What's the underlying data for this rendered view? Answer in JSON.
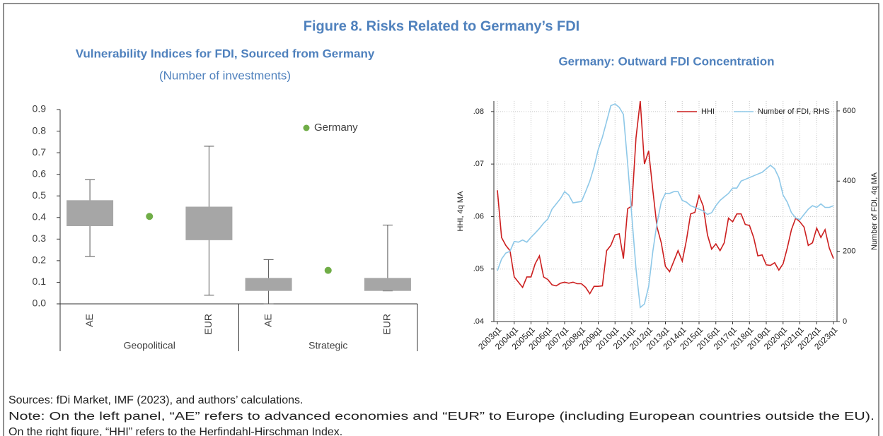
{
  "title": "Figure 8. Risks Related to Germany’s FDI",
  "sources": "Sources: fDi Market, IMF (2023), and authors’ calculations.",
  "note": [
    "Note: On the left panel, “AE” refers to advanced economies and “EUR” to Europe (including European countries outside the EU).",
    "On the right figure, “HHI” refers to the Herfindahl-Hirschman Index."
  ],
  "chart_data": [
    {
      "type": "box",
      "title": "Vulnerability Indices for FDI, Sourced from Germany",
      "subtitle": "(Number of investments)",
      "ylim": [
        0,
        0.9
      ],
      "yticks": [
        {
          "value": 0,
          "label": "0.0"
        },
        0.1,
        0.2,
        0.3,
        0.4,
        0.5,
        0.6,
        0.7,
        0.8,
        0.9
      ],
      "box_color": "#a6a6a6",
      "groups": [
        {
          "name": "Geopolitical",
          "categories": [
            "AE",
            "EUR"
          ],
          "low": [
            0.22,
            0.04
          ],
          "q1": [
            0.36,
            0.295
          ],
          "q3": [
            0.48,
            0.45
          ],
          "high": [
            0.575,
            0.73
          ]
        },
        {
          "name": "Strategic",
          "categories": [
            "AE",
            "EUR"
          ],
          "low": [
            0.0,
            0.06
          ],
          "q1": [
            0.06,
            0.06
          ],
          "q3": [
            0.12,
            0.12
          ],
          "high": [
            0.205,
            0.365
          ]
        }
      ],
      "series": [
        {
          "name": "Germany",
          "color": "#70ad47",
          "values": [
            0.405,
            0.155
          ]
        }
      ]
    },
    {
      "type": "line",
      "title": "Germany: Outward FDI Concentration",
      "ylabel": "HHI, 4q MA",
      "y2label": "Number of FDI, 4q MA",
      "categories": [
        "2003q1",
        null,
        null,
        null,
        "2004q1",
        null,
        null,
        null,
        "2005q1",
        null,
        null,
        null,
        "2006q1",
        null,
        null,
        null,
        "2007q1",
        null,
        null,
        null,
        "2008q1",
        null,
        null,
        null,
        "2009q1",
        null,
        null,
        null,
        "2010q1",
        null,
        null,
        null,
        "2011q1",
        null,
        null,
        null,
        "2012q1",
        null,
        null,
        null,
        "2013q1",
        null,
        null,
        null,
        "2014q1",
        null,
        null,
        null,
        "2015q1",
        null,
        null,
        null,
        "2016q1",
        null,
        null,
        null,
        "2017q1",
        null,
        null,
        null,
        "2018q1",
        null,
        null,
        null,
        "2019q1",
        null,
        null,
        null,
        "2020q1",
        null,
        null,
        null,
        "2021q1",
        null,
        null,
        null,
        "2022q1",
        null,
        null,
        null,
        "2023q1"
      ],
      "ylim": [
        0.04,
        0.082
      ],
      "yticks": [
        {
          "value": 0.04,
          "label": ".04"
        },
        {
          "value": 0.05,
          "label": ".05"
        },
        {
          "value": 0.06,
          "label": ".06"
        },
        {
          "value": 0.07,
          "label": ".07"
        },
        {
          "value": 0.08,
          "label": ".08"
        }
      ],
      "y2lim": [
        0,
        628
      ],
      "y2ticks": [
        0,
        200,
        400,
        600
      ],
      "grid": true,
      "legend": "top-right",
      "series": [
        {
          "name": "HHI",
          "color": "#cc1f1f",
          "values": [
            0.065,
            0.056,
            0.0545,
            0.0535,
            0.0485,
            0.0475,
            0.0465,
            0.0485,
            0.0485,
            0.051,
            0.0525,
            0.0485,
            0.048,
            0.047,
            0.0468,
            0.0473,
            0.0475,
            0.0473,
            0.0475,
            0.0472,
            0.0472,
            0.0465,
            0.0453,
            0.0467,
            0.0467,
            0.0468,
            0.0535,
            0.0545,
            0.0565,
            0.0567,
            0.052,
            0.0615,
            0.062,
            0.075,
            0.082,
            0.07,
            0.0725,
            0.065,
            0.058,
            0.055,
            0.0505,
            0.0495,
            0.0515,
            0.0535,
            0.0515,
            0.0555,
            0.0605,
            0.0608,
            0.064,
            0.062,
            0.0565,
            0.0538,
            0.0548,
            0.0535,
            0.055,
            0.0597,
            0.059,
            0.0605,
            0.0605,
            0.0585,
            0.0583,
            0.056,
            0.0525,
            0.0527,
            0.0508,
            0.0507,
            0.0512,
            0.0498,
            0.051,
            0.054,
            0.0575,
            0.0597,
            0.059,
            0.058,
            0.0545,
            0.055,
            0.0578,
            0.056,
            0.0575,
            0.054,
            0.052
          ]
        },
        {
          "name": "Number of FDI, RHS",
          "color": "#8ec8e8",
          "axis": "y2",
          "values": [
            145,
            178,
            195,
            200,
            228,
            226,
            232,
            226,
            240,
            252,
            265,
            280,
            292,
            320,
            335,
            350,
            370,
            360,
            338,
            340,
            342,
            370,
            400,
            440,
            490,
            525,
            570,
            615,
            620,
            610,
            590,
            450,
            300,
            150,
            40,
            50,
            100,
            200,
            280,
            340,
            365,
            365,
            370,
            370,
            345,
            340,
            330,
            325,
            320,
            315,
            305,
            310,
            330,
            345,
            355,
            365,
            380,
            380,
            400,
            405,
            410,
            415,
            420,
            425,
            435,
            445,
            435,
            410,
            360,
            340,
            310,
            295,
            290,
            305,
            320,
            330,
            325,
            335,
            325,
            325,
            330
          ]
        }
      ]
    }
  ]
}
